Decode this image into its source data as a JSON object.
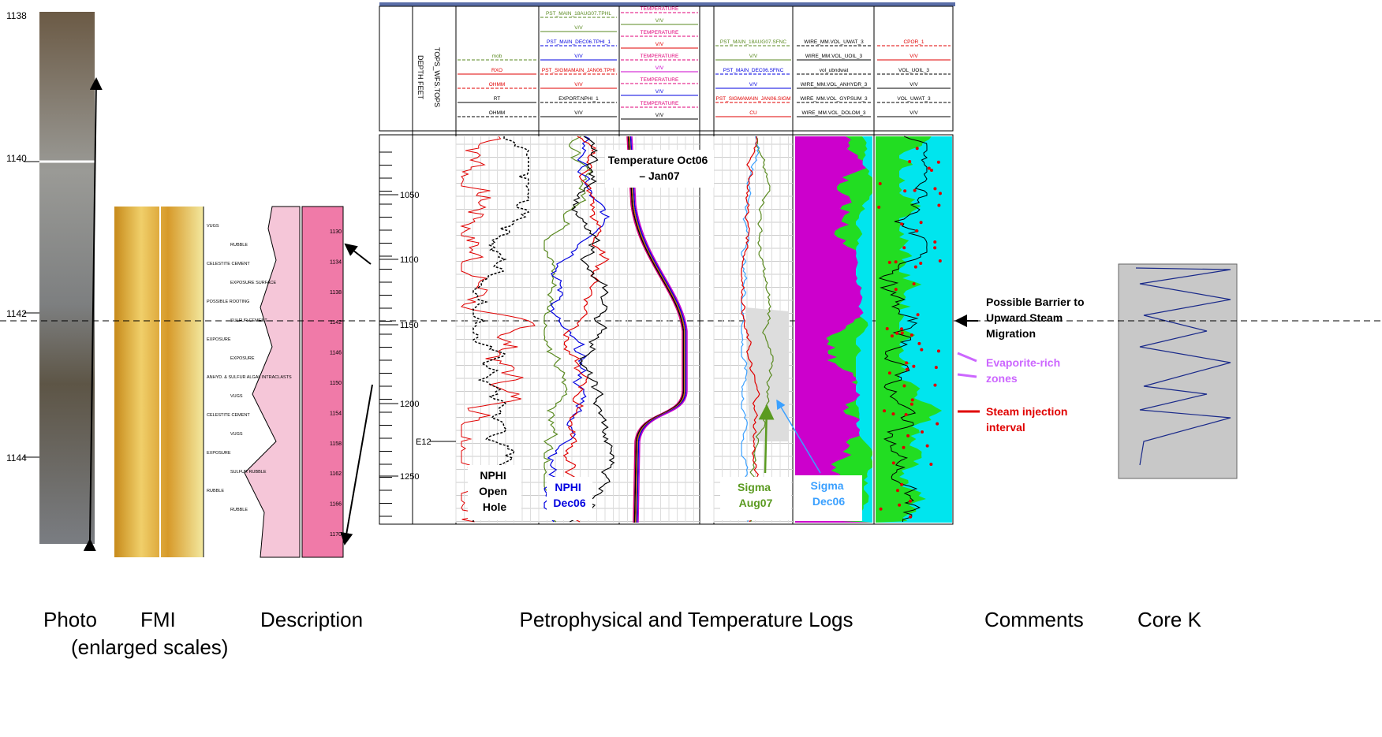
{
  "photo": {
    "depth_labels": [
      "1138",
      "1140",
      "1142",
      "1144"
    ]
  },
  "description": {
    "depth_labels": [
      "1130",
      "1134",
      "1138",
      "1142",
      "1146",
      "1150",
      "1154",
      "1158",
      "1162",
      "1166",
      "1170"
    ],
    "notes": [
      "VUGS",
      "RUBBLE",
      "CELESTITE CEMENT",
      "EXPOSURE SURFACE",
      "POSSIBLE ROOTING",
      "SULFUR CEMENT",
      "EXPOSURE",
      "EXPOSURE",
      "ANHYD. & SULFUR ALGAL INTRACLASTS",
      "VUGS",
      "CELESTITE CEMENT",
      "VUGS",
      "EXPOSURE",
      "SULFUR RUBBLE",
      "RUBBLE",
      "RUBBLE"
    ]
  },
  "logs": {
    "depth_header": "DEPTH FEET",
    "tops_header": "TOPS_WFS.TOPS",
    "depth_labels": [
      "1050",
      "1100",
      "1150",
      "1200",
      "1250"
    ],
    "top_marker": "E12",
    "track_headers": [
      [
        {
          "text": "mob",
          "color": "#5a8a20"
        },
        {
          "text": "RXO",
          "color": "#e00000"
        },
        {
          "text": "OHMM",
          "color": "#e00000"
        },
        {
          "text": "RT",
          "color": "#000000"
        },
        {
          "text": "OHMM",
          "color": "#000000"
        }
      ],
      [
        {
          "text": "PST_MAIN_18AUG07.TPHL",
          "color": "#5a8a20"
        },
        {
          "text": "V/V",
          "color": "#5a8a20"
        },
        {
          "text": "PST_MAIN_DEC06.TPHI_1",
          "color": "#0000e0"
        },
        {
          "text": "V/V",
          "color": "#0000e0"
        },
        {
          "text": "PST_SIGMAMAIN_JAN06.TPHI",
          "color": "#e00000"
        },
        {
          "text": "V/V",
          "color": "#e00000"
        },
        {
          "text": "EXPORT.NPHI_1",
          "color": "#000000"
        },
        {
          "text": "V/V",
          "color": "#000000"
        }
      ],
      [
        {
          "text": "TEMPERATURE",
          "color": "#e0007a"
        },
        {
          "text": "V/V",
          "color": "#5a8a20"
        },
        {
          "text": "TEMPERATURE",
          "color": "#e0007a"
        },
        {
          "text": "V/V",
          "color": "#e00000"
        },
        {
          "text": "TEMPERATURE",
          "color": "#e0007a"
        },
        {
          "text": "V/V",
          "color": "#cc00cc"
        },
        {
          "text": "TEMPERATURE",
          "color": "#e0007a"
        },
        {
          "text": "V/V",
          "color": "#0000e0"
        },
        {
          "text": "TEMPERATURE",
          "color": "#e0007a"
        },
        {
          "text": "V/V",
          "color": "#000000"
        }
      ],
      [
        {
          "text": "PST_MAIN_18AUG07.SFNC",
          "color": "#5a8a20"
        },
        {
          "text": "V/V",
          "color": "#5a8a20"
        },
        {
          "text": "PST_MAIN_DEC06.SFNC",
          "color": "#0000e0"
        },
        {
          "text": "V/V",
          "color": "#0000e0"
        },
        {
          "text": "PST_SIGMAMAIN_JAN06.SIGM",
          "color": "#e00000"
        },
        {
          "text": "CU",
          "color": "#e00000"
        }
      ],
      [
        {
          "text": "WIRE_MM.VOL_UWAT_3",
          "color": "#000000"
        },
        {
          "text": "WIRE_MM.VOL_UOIL_3",
          "color": "#000000"
        },
        {
          "text": "vol_ubndwat",
          "color": "#000000"
        },
        {
          "text": "WIRE_MM.VOL_ANHYDR_3",
          "color": "#000000"
        },
        {
          "text": "WIRE_MM.VOL_GYPSUM_3",
          "color": "#000000"
        },
        {
          "text": "WIRE_MM.VOL_DOLOM_3",
          "color": "#000000"
        }
      ],
      [
        {
          "text": "CPOR_1",
          "color": "#e00000"
        },
        {
          "text": "V/V",
          "color": "#e00000"
        },
        {
          "text": "VOL_UOIL_3",
          "color": "#000000"
        },
        {
          "text": "V/V",
          "color": "#000000"
        },
        {
          "text": "VOL_UWAT_3",
          "color": "#000000"
        },
        {
          "text": "V/V",
          "color": "#000000"
        }
      ]
    ],
    "annotations": {
      "temperature": "Temperature Oct06 – Jan07",
      "nphi_open_hole": "NPHI Open Hole",
      "nphi_dec06": "NPHI Dec06",
      "sigma_aug07": "Sigma Aug07",
      "sigma_dec06": "Sigma Dec06"
    }
  },
  "comments": {
    "barrier": "Possible Barrier to Upward Steam Migration",
    "evaporite": "Evaporite-rich zones",
    "steam": "Steam injection interval"
  },
  "captions": {
    "photo": "Photo",
    "fmi": "FMI",
    "description": "Description",
    "enlarged": "(enlarged scales)",
    "logs": "Petrophysical and Temperature Logs",
    "comments": "Comments",
    "core_k": "Core K"
  }
}
